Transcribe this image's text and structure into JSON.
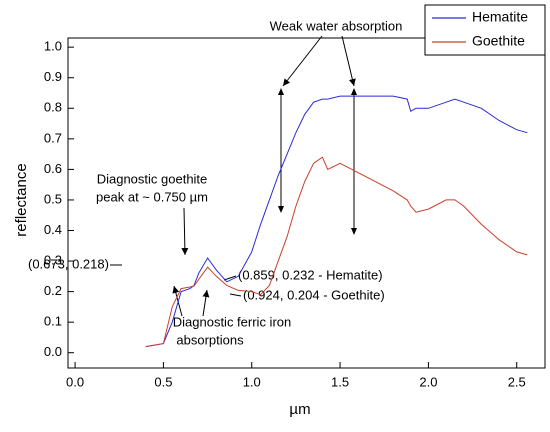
{
  "chart_data": {
    "type": "line",
    "x_label": "µm",
    "y_label": "reflectance",
    "x": [
      0.4,
      0.5,
      0.55,
      0.6,
      0.65,
      0.673,
      0.7,
      0.75,
      0.8,
      0.859,
      0.924,
      1.0,
      1.05,
      1.1,
      1.15,
      1.2,
      1.25,
      1.3,
      1.35,
      1.4,
      1.43,
      1.5,
      1.6,
      1.7,
      1.8,
      1.88,
      1.9,
      1.93,
      2.0,
      2.1,
      2.15,
      2.2,
      2.3,
      2.4,
      2.5,
      2.56
    ],
    "series": [
      {
        "name": "Hematite",
        "color": "#2a2ad8",
        "values": [
          0.02,
          0.03,
          0.1,
          0.2,
          0.21,
          0.22,
          0.26,
          0.31,
          0.27,
          0.232,
          0.25,
          0.33,
          0.42,
          0.5,
          0.58,
          0.65,
          0.72,
          0.78,
          0.82,
          0.83,
          0.83,
          0.84,
          0.84,
          0.84,
          0.84,
          0.83,
          0.79,
          0.8,
          0.8,
          0.82,
          0.83,
          0.82,
          0.8,
          0.76,
          0.73,
          0.72
        ]
      },
      {
        "name": "Goethite",
        "color": "#c8402a",
        "values": [
          0.02,
          0.03,
          0.15,
          0.21,
          0.215,
          0.218,
          0.24,
          0.28,
          0.25,
          0.22,
          0.204,
          0.2,
          0.19,
          0.22,
          0.3,
          0.38,
          0.48,
          0.56,
          0.62,
          0.64,
          0.6,
          0.62,
          0.59,
          0.56,
          0.53,
          0.5,
          0.48,
          0.46,
          0.47,
          0.5,
          0.5,
          0.48,
          0.42,
          0.37,
          0.33,
          0.32
        ]
      }
    ],
    "xlim": [
      -0.04,
      2.66
    ],
    "ylim": [
      -0.05,
      1.03
    ],
    "xticks": [
      {
        "value": 0,
        "label": "0.0"
      },
      {
        "value": 0.5,
        "label": "0.5"
      },
      {
        "value": 1,
        "label": "1.0"
      },
      {
        "value": 1.5,
        "label": "1.5"
      },
      {
        "value": 2,
        "label": "2.0"
      },
      {
        "value": 2.5,
        "label": "2.5"
      }
    ],
    "yticks": [
      {
        "value": 0,
        "label": "0.0"
      },
      0.1,
      0.2,
      0.3,
      0.4,
      0.5,
      0.6,
      0.7,
      0.8,
      0.9,
      {
        "value": 1,
        "label": "1.0"
      }
    ],
    "legend": "upper right",
    "annotations": [
      {
        "text": "Weak water absorption"
      },
      {
        "text": "Diagnostic goethite"
      },
      {
        "text": "peak at ~ 0.750 µm"
      },
      {
        "text": "(0.673, 0.218)"
      },
      {
        "text": "(0.859, 0.232 - Hematite)",
        "color": "#2a2ad8"
      },
      {
        "text": "(0.924, 0.204 - Goethite)",
        "color": "#c8402a"
      },
      {
        "text": "Diagnostic ferric iron"
      },
      {
        "text": "absorptions"
      }
    ]
  }
}
